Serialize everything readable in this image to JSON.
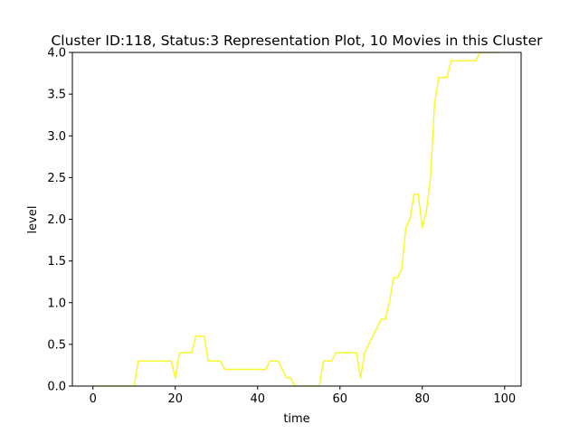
{
  "chart_data": {
    "type": "line",
    "title": "Cluster ID:118, Status:3 Representation Plot, 10 Movies in this Cluster",
    "xlabel": "time",
    "ylabel": "level",
    "xlim": [
      -5,
      104
    ],
    "ylim": [
      0,
      4.0
    ],
    "xticks": [
      0,
      20,
      40,
      60,
      80,
      100
    ],
    "xtick_labels": [
      "0",
      "20",
      "40",
      "60",
      "80",
      "100"
    ],
    "yticks": [
      0.0,
      0.5,
      1.0,
      1.5,
      2.0,
      2.5,
      3.0,
      3.5,
      4.0
    ],
    "ytick_labels": [
      "0.0",
      "0.5",
      "1.0",
      "1.5",
      "2.0",
      "2.5",
      "3.0",
      "3.5",
      "4.0"
    ],
    "grid": false,
    "series": [
      {
        "color": "#f7f72a",
        "x": [
          0,
          1,
          2,
          3,
          4,
          5,
          6,
          7,
          8,
          9,
          10,
          11,
          12,
          13,
          14,
          15,
          16,
          17,
          18,
          19,
          20,
          21,
          22,
          23,
          24,
          25,
          26,
          27,
          28,
          29,
          30,
          31,
          32,
          33,
          34,
          35,
          36,
          37,
          38,
          39,
          40,
          41,
          42,
          43,
          44,
          45,
          46,
          47,
          48,
          49,
          50,
          51,
          52,
          53,
          54,
          55,
          56,
          57,
          58,
          59,
          60,
          61,
          62,
          63,
          64,
          65,
          66,
          67,
          68,
          69,
          70,
          71,
          72,
          73,
          74,
          75,
          76,
          77,
          78,
          79,
          80,
          81,
          82,
          83,
          84,
          85,
          86,
          87,
          88,
          89,
          90,
          91,
          92,
          93,
          94,
          95,
          96,
          97,
          98,
          99
        ],
        "y": [
          0,
          0,
          0,
          0,
          0,
          0,
          0,
          0,
          0,
          0,
          0,
          0.3,
          0.3,
          0.3,
          0.3,
          0.3,
          0.3,
          0.3,
          0.3,
          0.3,
          0.1,
          0.4,
          0.4,
          0.4,
          0.4,
          0.6,
          0.6,
          0.6,
          0.3,
          0.3,
          0.3,
          0.3,
          0.2,
          0.2,
          0.2,
          0.2,
          0.2,
          0.2,
          0.2,
          0.2,
          0.2,
          0.2,
          0.2,
          0.3,
          0.3,
          0.3,
          0.2,
          0.1,
          0.1,
          0,
          0,
          0,
          0,
          0,
          0,
          0,
          0.3,
          0.3,
          0.3,
          0.4,
          0.4,
          0.4,
          0.4,
          0.4,
          0.4,
          0.1,
          0.4,
          0.5,
          0.6,
          0.7,
          0.8,
          0.8,
          1.0,
          1.3,
          1.3,
          1.4,
          1.9,
          2.0,
          2.3,
          2.3,
          1.9,
          2.1,
          2.5,
          3.4,
          3.7,
          3.7,
          3.7,
          3.9,
          3.9,
          3.9,
          3.9,
          3.9,
          3.9,
          3.9,
          4.0,
          4.0,
          4.0,
          4.0,
          4.0,
          4.0
        ]
      }
    ]
  }
}
